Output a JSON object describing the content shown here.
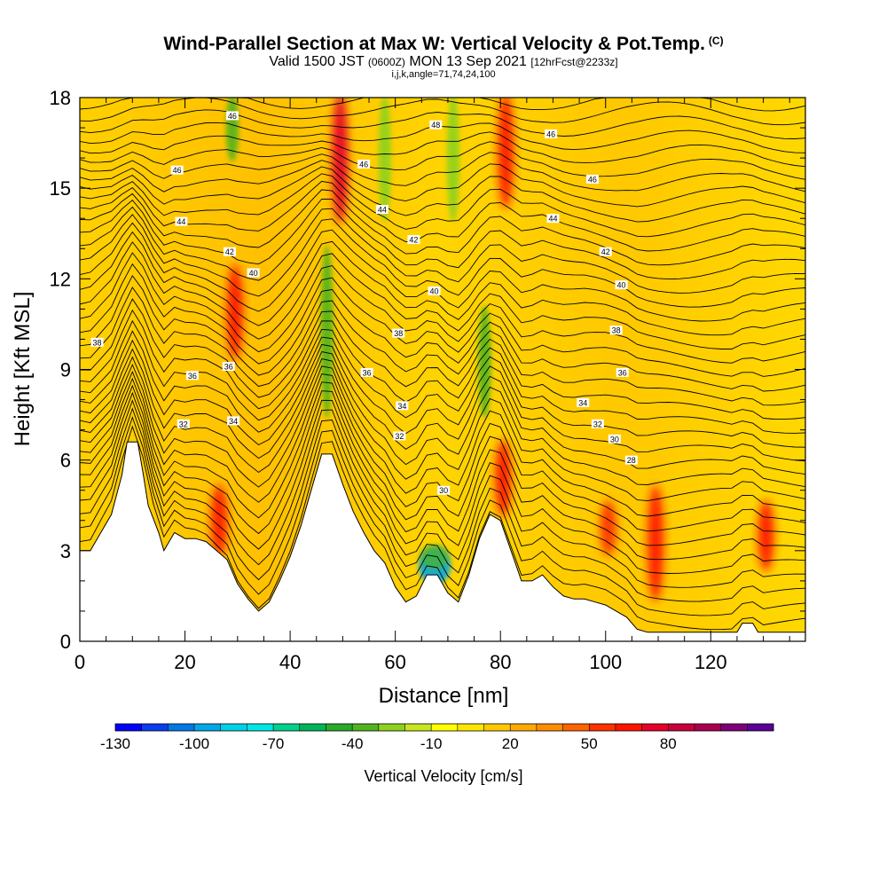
{
  "chart_data": {
    "type": "heatmap",
    "title": "Wind-Parallel Section at Max W: Vertical Velocity & Pot.Temp.",
    "copyright_mark": "(C)",
    "subtitle_main": "Valid 1500 JST",
    "subtitle_utc": "(0600Z)",
    "subtitle_date": "MON 13 Sep 2021",
    "subtitle_fcst": "[12hrFcst@2233z]",
    "params": "i,j,k,angle=71,74,24,100",
    "xlabel": "Distance [nm]",
    "ylabel": "Height [Kft MSL]",
    "xlim": [
      0,
      138
    ],
    "ylim": [
      0,
      18
    ],
    "x_ticks": [
      0,
      20,
      40,
      60,
      80,
      100,
      120
    ],
    "y_ticks": [
      0,
      3,
      6,
      9,
      12,
      15,
      18
    ],
    "grid": false,
    "terrain_kft": [
      [
        0,
        3.0
      ],
      [
        2,
        3.0
      ],
      [
        4,
        3.6
      ],
      [
        6,
        4.2
      ],
      [
        8,
        5.5
      ],
      [
        9,
        6.6
      ],
      [
        11,
        6.6
      ],
      [
        12,
        5.6
      ],
      [
        13,
        4.5
      ],
      [
        15,
        3.6
      ],
      [
        16,
        3.0
      ],
      [
        18,
        3.6
      ],
      [
        20,
        3.4
      ],
      [
        22,
        3.4
      ],
      [
        24,
        3.3
      ],
      [
        26,
        3.0
      ],
      [
        28,
        2.7
      ],
      [
        30,
        1.9
      ],
      [
        32,
        1.4
      ],
      [
        34,
        1.0
      ],
      [
        36,
        1.3
      ],
      [
        38,
        2.0
      ],
      [
        40,
        2.8
      ],
      [
        42,
        3.8
      ],
      [
        44,
        5.0
      ],
      [
        46,
        6.2
      ],
      [
        48,
        6.2
      ],
      [
        50,
        5.2
      ],
      [
        52,
        4.3
      ],
      [
        54,
        3.6
      ],
      [
        56,
        3.0
      ],
      [
        58,
        2.6
      ],
      [
        60,
        1.8
      ],
      [
        62,
        1.3
      ],
      [
        64,
        1.5
      ],
      [
        66,
        2.2
      ],
      [
        68,
        2.2
      ],
      [
        70,
        1.6
      ],
      [
        72,
        1.3
      ],
      [
        74,
        2.2
      ],
      [
        76,
        3.4
      ],
      [
        78,
        4.2
      ],
      [
        80,
        4.0
      ],
      [
        82,
        3.0
      ],
      [
        84,
        2.0
      ],
      [
        86,
        2.0
      ],
      [
        88,
        2.2
      ],
      [
        90,
        1.8
      ],
      [
        92,
        1.5
      ],
      [
        94,
        1.4
      ],
      [
        96,
        1.4
      ],
      [
        98,
        1.3
      ],
      [
        100,
        1.2
      ],
      [
        102,
        1.0
      ],
      [
        104,
        0.8
      ],
      [
        106,
        0.4
      ],
      [
        108,
        0.3
      ],
      [
        110,
        0.3
      ],
      [
        115,
        0.3
      ],
      [
        120,
        0.3
      ],
      [
        125,
        0.3
      ],
      [
        126,
        0.6
      ],
      [
        128,
        0.6
      ],
      [
        129,
        0.3
      ],
      [
        131,
        0.3
      ],
      [
        134,
        0.3
      ],
      [
        138,
        0.3
      ]
    ],
    "updrafts_cm_s": [
      {
        "x": 29.5,
        "y_kft": [
          9.5,
          12.3
        ],
        "w": 60
      },
      {
        "x": 26.5,
        "y_kft": [
          3.0,
          5.0
        ],
        "w": 55
      },
      {
        "x": 49.5,
        "y_kft": [
          14.0,
          18.0
        ],
        "w": 65
      },
      {
        "x": 81.0,
        "y_kft": [
          14.5,
          18.0
        ],
        "w": 55
      },
      {
        "x": 80.5,
        "y_kft": [
          4.3,
          6.5
        ],
        "w": 55
      },
      {
        "x": 100.5,
        "y_kft": [
          3.0,
          4.5
        ],
        "w": 50
      },
      {
        "x": 109.5,
        "y_kft": [
          1.5,
          5.0
        ],
        "w": 60
      },
      {
        "x": 130.5,
        "y_kft": [
          2.5,
          4.5
        ],
        "w": 55
      }
    ],
    "downdrafts_cm_s": [
      {
        "x": 67.5,
        "y_kft": [
          2.0,
          3.0
        ],
        "w": -100
      },
      {
        "x": 29.0,
        "y_kft": [
          16.0,
          18.0
        ],
        "w": -40
      },
      {
        "x": 47.0,
        "y_kft": [
          7.5,
          13.0
        ],
        "w": -40
      },
      {
        "x": 77.0,
        "y_kft": [
          7.5,
          11.0
        ],
        "w": -40
      },
      {
        "x": 58.0,
        "y_kft": [
          14.0,
          18.0
        ],
        "w": -30
      },
      {
        "x": 71.0,
        "y_kft": [
          14.0,
          18.0
        ],
        "w": -30
      }
    ],
    "isentrope_labels": [
      {
        "value": "46",
        "x": 29.0,
        "y": 17.4
      },
      {
        "value": "48",
        "x": 67.7,
        "y": 17.1
      },
      {
        "value": "46",
        "x": 89.6,
        "y": 16.8
      },
      {
        "value": "46",
        "x": 18.5,
        "y": 15.6
      },
      {
        "value": "46",
        "x": 54.0,
        "y": 15.8
      },
      {
        "value": "46",
        "x": 97.5,
        "y": 15.3
      },
      {
        "value": "44",
        "x": 19.3,
        "y": 13.9
      },
      {
        "value": "44",
        "x": 57.5,
        "y": 14.3
      },
      {
        "value": "44",
        "x": 90.0,
        "y": 14.0
      },
      {
        "value": "42",
        "x": 28.5,
        "y": 12.9
      },
      {
        "value": "42",
        "x": 63.5,
        "y": 13.3
      },
      {
        "value": "42",
        "x": 100.0,
        "y": 12.9
      },
      {
        "value": "40",
        "x": 33.0,
        "y": 12.2
      },
      {
        "value": "40",
        "x": 67.4,
        "y": 11.6
      },
      {
        "value": "40",
        "x": 103.0,
        "y": 11.8
      },
      {
        "value": "38",
        "x": 3.3,
        "y": 9.9
      },
      {
        "value": "38",
        "x": 60.6,
        "y": 10.2
      },
      {
        "value": "38",
        "x": 102.0,
        "y": 10.3
      },
      {
        "value": "36",
        "x": 21.4,
        "y": 8.8
      },
      {
        "value": "36",
        "x": 28.3,
        "y": 9.1
      },
      {
        "value": "36",
        "x": 54.6,
        "y": 8.9
      },
      {
        "value": "36",
        "x": 103.2,
        "y": 8.9
      },
      {
        "value": "34",
        "x": 61.3,
        "y": 7.8
      },
      {
        "value": "34",
        "x": 95.7,
        "y": 7.9
      },
      {
        "value": "34",
        "x": 29.2,
        "y": 7.3
      },
      {
        "value": "32",
        "x": 19.7,
        "y": 7.2
      },
      {
        "value": "32",
        "x": 60.8,
        "y": 6.8
      },
      {
        "value": "32",
        "x": 98.5,
        "y": 7.2
      },
      {
        "value": "30",
        "x": 101.7,
        "y": 6.7
      },
      {
        "value": "30",
        "x": 69.2,
        "y": 5.0
      },
      {
        "value": "28",
        "x": 104.9,
        "y": 6.0
      }
    ],
    "colorbar": {
      "title": "Vertical Velocity [cm/s]",
      "tick_labels": [
        "-130",
        "-100",
        "-70",
        "-40",
        "-10",
        "20",
        "50",
        "80"
      ],
      "colors": [
        "#0000ff",
        "#0a3cf0",
        "#0078e6",
        "#00a8e6",
        "#00d2e6",
        "#00e6e6",
        "#00d28c",
        "#00b45a",
        "#28aa28",
        "#50b41e",
        "#8cd21e",
        "#c8e61e",
        "#ffff00",
        "#ffe600",
        "#ffc800",
        "#ffaa00",
        "#ff8c00",
        "#ff6400",
        "#ff3200",
        "#ff1400",
        "#e6002a",
        "#c8003c",
        "#aa0050",
        "#800078",
        "#5a0096"
      ]
    }
  }
}
